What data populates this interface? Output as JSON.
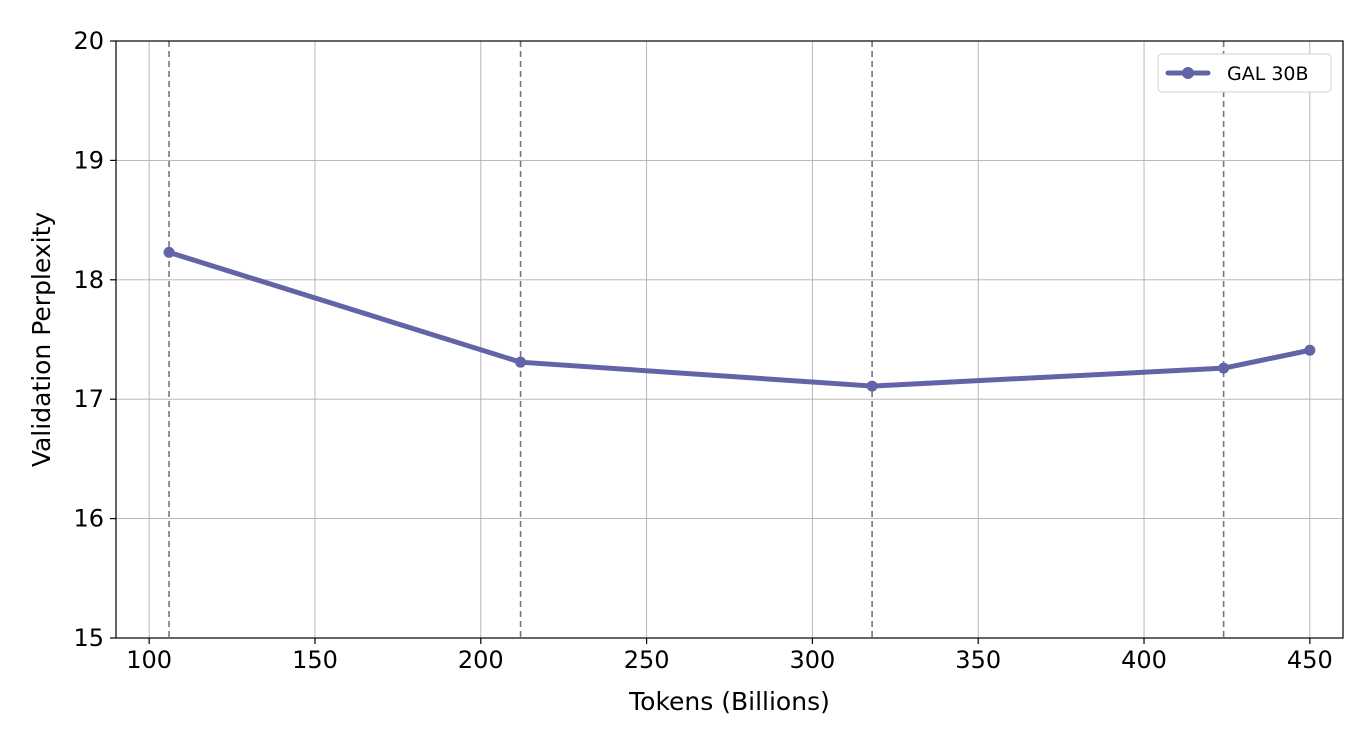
{
  "chart_data": {
    "type": "line",
    "title": "",
    "xlabel": "Tokens (Billions)",
    "ylabel": "Validation Perplexity",
    "xlim": [
      90,
      460
    ],
    "ylim": [
      15,
      20
    ],
    "xticks": [
      100,
      150,
      200,
      250,
      300,
      350,
      400,
      450
    ],
    "yticks": [
      15,
      16,
      17,
      18,
      19,
      20
    ],
    "grid": true,
    "legend_position": "top-right",
    "series": [
      {
        "name": "GAL 30B",
        "color": "#6264a7",
        "marker": "circle",
        "x": [
          106,
          212,
          318,
          424,
          450
        ],
        "y": [
          18.23,
          17.31,
          17.11,
          17.26,
          17.41
        ]
      }
    ],
    "vertical_lines": {
      "x": [
        106,
        212,
        318,
        424
      ],
      "style": "dashed",
      "color": "#777777"
    }
  }
}
